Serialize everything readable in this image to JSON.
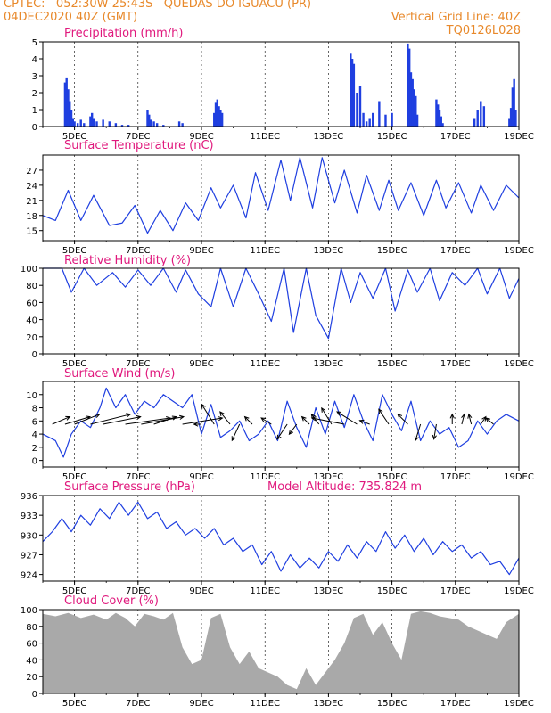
{
  "header": {
    "line1": "CPTEC:   052:30W-25:43S   QUEDAS DO IGUACU (PR)",
    "line2": "04DEC2020 40Z (GMT)",
    "grid_line": "Vertical Grid Line: 40Z",
    "code": "TQ0126L028"
  },
  "colors": {
    "header": "#e8892b",
    "title": "#e0197d",
    "line": "#1f3fe0",
    "bar": "#1f3fe0",
    "cloud": "#a9a9a9"
  },
  "x_ticks": [
    "5DEC",
    "7DEC",
    "9DEC",
    "11DEC",
    "13DEC",
    "15DEC",
    "17DEC",
    "19DEC"
  ],
  "chart_data": [
    {
      "type": "bar",
      "title": "Precipitation (mm/h)",
      "xlim": [
        4.0,
        19.0
      ],
      "ylim": [
        0,
        5
      ],
      "yticks": [
        0,
        1,
        2,
        3,
        4,
        5
      ],
      "x": [
        4.7,
        4.75,
        4.8,
        4.85,
        4.9,
        4.95,
        5.0,
        5.1,
        5.2,
        5.3,
        5.5,
        5.55,
        5.6,
        5.7,
        5.9,
        6.1,
        6.3,
        6.5,
        6.7,
        7.3,
        7.35,
        7.4,
        7.5,
        7.6,
        7.8,
        8.3,
        8.4,
        9.4,
        9.45,
        9.5,
        9.55,
        9.6,
        9.65,
        13.7,
        13.75,
        13.8,
        13.9,
        14.0,
        14.1,
        14.2,
        14.3,
        14.4,
        14.6,
        14.8,
        15.0,
        15.5,
        15.55,
        15.6,
        15.65,
        15.7,
        15.75,
        15.8,
        16.4,
        16.45,
        16.5,
        16.55,
        16.6,
        17.6,
        17.7,
        17.8,
        17.9,
        18.7,
        18.75,
        18.8,
        18.85,
        18.9
      ],
      "values": [
        2.6,
        2.9,
        2.2,
        1.5,
        1.0,
        0.5,
        0.3,
        0.2,
        0.4,
        0.2,
        0.6,
        0.8,
        0.5,
        0.3,
        0.4,
        0.3,
        0.2,
        0.1,
        0.1,
        1.0,
        0.7,
        0.4,
        0.3,
        0.2,
        0.1,
        0.3,
        0.2,
        0.8,
        1.4,
        1.6,
        1.2,
        1.0,
        0.8,
        4.3,
        4.0,
        3.7,
        2.0,
        2.4,
        0.8,
        0.3,
        0.5,
        0.8,
        1.5,
        0.7,
        0.8,
        4.9,
        4.6,
        3.2,
        2.8,
        2.2,
        1.8,
        0.7,
        1.6,
        1.3,
        1.0,
        0.6,
        0.2,
        0.5,
        1.0,
        1.5,
        1.2,
        0.5,
        1.1,
        2.3,
        2.8,
        1.0
      ]
    },
    {
      "type": "line",
      "title": "Surface Temperature (nC)",
      "xlim": [
        4.0,
        19.0
      ],
      "ylim": [
        13,
        30
      ],
      "yticks": [
        15,
        18,
        21,
        24,
        27
      ],
      "x": [
        4.0,
        4.4,
        4.8,
        5.2,
        5.6,
        6.1,
        6.5,
        6.9,
        7.3,
        7.7,
        8.1,
        8.5,
        8.9,
        9.3,
        9.6,
        10.0,
        10.4,
        10.7,
        11.1,
        11.5,
        11.8,
        12.1,
        12.5,
        12.8,
        13.2,
        13.5,
        13.9,
        14.2,
        14.6,
        14.9,
        15.2,
        15.6,
        16.0,
        16.4,
        16.7,
        17.1,
        17.5,
        17.8,
        18.2,
        18.6,
        19.0
      ],
      "values": [
        18,
        17,
        23,
        17,
        22,
        16,
        16.5,
        20,
        14.5,
        19,
        15,
        20.5,
        17,
        23.5,
        19.5,
        24,
        17.5,
        26.5,
        19,
        29,
        21,
        29.5,
        19.5,
        29.5,
        20.5,
        27,
        18.5,
        26,
        19,
        25,
        19,
        24.5,
        18,
        25,
        19.5,
        24.5,
        18.5,
        24,
        19,
        24,
        21.5
      ]
    },
    {
      "type": "line",
      "title": "Relative Humidity (%)",
      "xlim": [
        4.0,
        19.0
      ],
      "ylim": [
        0,
        100
      ],
      "yticks": [
        0,
        20,
        40,
        60,
        80,
        100
      ],
      "x": [
        4.0,
        4.6,
        4.9,
        5.3,
        5.7,
        6.2,
        6.6,
        7.0,
        7.4,
        7.8,
        8.2,
        8.5,
        8.9,
        9.3,
        9.6,
        10.0,
        10.4,
        10.8,
        11.2,
        11.6,
        11.9,
        12.3,
        12.6,
        13.0,
        13.4,
        13.7,
        14.0,
        14.4,
        14.8,
        15.1,
        15.5,
        15.8,
        16.2,
        16.5,
        16.9,
        17.3,
        17.7,
        18.0,
        18.4,
        18.7,
        19.0
      ],
      "values": [
        100,
        100,
        72,
        100,
        80,
        95,
        78,
        98,
        80,
        100,
        72,
        98,
        70,
        55,
        100,
        55,
        100,
        70,
        38,
        100,
        25,
        100,
        45,
        18,
        100,
        60,
        95,
        65,
        100,
        50,
        98,
        72,
        100,
        62,
        95,
        80,
        100,
        70,
        100,
        65,
        88
      ]
    },
    {
      "type": "line",
      "title": "Surface Wind (m/s)",
      "xlim": [
        4.0,
        19.0
      ],
      "ylim": [
        -1,
        12
      ],
      "yticks": [
        0,
        2,
        4,
        6,
        8,
        10
      ],
      "x": [
        4.0,
        4.4,
        4.65,
        4.9,
        5.2,
        5.5,
        5.8,
        6.0,
        6.3,
        6.6,
        6.9,
        7.2,
        7.5,
        7.8,
        8.1,
        8.4,
        8.7,
        9.0,
        9.3,
        9.6,
        9.9,
        10.2,
        10.5,
        10.8,
        11.1,
        11.4,
        11.7,
        12.0,
        12.3,
        12.6,
        12.9,
        13.2,
        13.5,
        13.8,
        14.1,
        14.4,
        14.7,
        15.0,
        15.3,
        15.6,
        15.9,
        16.2,
        16.5,
        16.8,
        17.1,
        17.4,
        17.7,
        18.0,
        18.3,
        18.6,
        19.0
      ],
      "values": [
        4,
        3,
        0.5,
        4,
        6,
        5,
        8,
        11,
        8,
        10,
        7,
        9,
        8,
        10,
        9,
        8,
        10,
        4,
        8.5,
        3.5,
        4.5,
        6,
        3,
        4,
        6,
        3,
        9,
        5,
        2,
        8,
        4,
        9,
        5,
        10,
        6,
        3,
        10,
        7,
        4.5,
        9,
        3,
        6,
        4,
        5,
        2,
        3,
        6,
        4,
        6,
        7,
        6
      ]
    },
    {
      "type": "line",
      "title": "Surface Pressure (hPa)",
      "subtitle": "Model Altitude: 735.824 m",
      "xlim": [
        4.0,
        19.0
      ],
      "ylim": [
        923,
        936
      ],
      "yticks": [
        924,
        927,
        930,
        933,
        936
      ],
      "x": [
        4.0,
        4.3,
        4.6,
        4.9,
        5.2,
        5.5,
        5.8,
        6.1,
        6.4,
        6.7,
        7.0,
        7.3,
        7.6,
        7.9,
        8.2,
        8.5,
        8.8,
        9.1,
        9.4,
        9.7,
        10.0,
        10.3,
        10.6,
        10.9,
        11.2,
        11.5,
        11.8,
        12.1,
        12.4,
        12.7,
        13.0,
        13.3,
        13.6,
        13.9,
        14.2,
        14.5,
        14.8,
        15.1,
        15.4,
        15.7,
        16.0,
        16.3,
        16.6,
        16.9,
        17.2,
        17.5,
        17.8,
        18.1,
        18.4,
        18.7,
        19.0
      ],
      "values": [
        929,
        930.5,
        932.5,
        930.5,
        933,
        931.5,
        934,
        932.5,
        935,
        933,
        935,
        932.5,
        933.5,
        931,
        932,
        930,
        931,
        929.5,
        931,
        928.5,
        929.5,
        927.5,
        928.5,
        925.5,
        927.5,
        924.5,
        927,
        925,
        926.5,
        925,
        927.5,
        926,
        928.5,
        926.5,
        929,
        927.5,
        930.5,
        928,
        930,
        927.5,
        929.5,
        927,
        929,
        927.5,
        928.5,
        926.5,
        927.5,
        925.5,
        926,
        924,
        926.5
      ]
    },
    {
      "type": "area",
      "title": "Cloud Cover (%)",
      "xlim": [
        4.0,
        19.0
      ],
      "ylim": [
        0,
        100
      ],
      "yticks": [
        0,
        20,
        40,
        60,
        80,
        100
      ],
      "x": [
        4.0,
        4.4,
        4.8,
        5.2,
        5.6,
        6.0,
        6.3,
        6.6,
        6.9,
        7.2,
        7.5,
        7.8,
        8.1,
        8.4,
        8.7,
        9.0,
        9.3,
        9.6,
        9.9,
        10.2,
        10.5,
        10.8,
        11.1,
        11.4,
        11.7,
        12.0,
        12.3,
        12.6,
        12.9,
        13.2,
        13.5,
        13.8,
        14.1,
        14.4,
        14.7,
        15.0,
        15.3,
        15.6,
        15.9,
        16.2,
        16.5,
        16.8,
        17.1,
        17.4,
        17.7,
        18.0,
        18.3,
        18.6,
        19.0
      ],
      "values": [
        95,
        92,
        96,
        90,
        94,
        88,
        96,
        90,
        80,
        95,
        92,
        88,
        96,
        55,
        35,
        40,
        90,
        95,
        55,
        35,
        50,
        30,
        25,
        20,
        10,
        5,
        30,
        10,
        25,
        40,
        60,
        90,
        95,
        70,
        85,
        60,
        40,
        95,
        98,
        96,
        92,
        90,
        88,
        80,
        75,
        70,
        65,
        85,
        95
      ]
    }
  ],
  "wind_vectors": {
    "x": [
      4.3,
      4.7,
      5.0,
      5.5,
      5.9,
      6.6,
      7.1,
      7.5,
      8.4,
      9.0,
      9.4,
      9.9,
      10.2,
      10.6,
      11.2,
      11.7,
      12.0,
      12.4,
      12.7,
      13.1,
      13.5,
      13.9,
      14.3,
      14.9,
      15.5,
      15.9,
      16.4,
      16.9,
      17.2,
      17.5,
      17.8,
      18.2
    ],
    "dx": [
      0.7,
      1.0,
      1.0,
      1.6,
      1.5,
      1.8,
      1.7,
      0.9,
      1.6,
      -0.3,
      -0.5,
      -0.4,
      -0.3,
      -0.3,
      -0.4,
      -0.4,
      -0.3,
      -0.3,
      -0.3,
      -0.4,
      -1.3,
      -0.8,
      -0.4,
      -0.4,
      -0.4,
      -0.2,
      -0.1,
      0.0,
      0.1,
      -0.1,
      0.2,
      -0.3
    ],
    "dy": [
      0.6,
      0.6,
      0.8,
      0.8,
      0.6,
      0.5,
      0.6,
      0.6,
      0.5,
      0.0,
      1.6,
      1.0,
      -1.3,
      0.6,
      0.5,
      -1.2,
      -0.8,
      0.6,
      0.8,
      1.3,
      0.5,
      1.0,
      0.3,
      1.2,
      0.8,
      -1.3,
      -1.2,
      0.8,
      0.8,
      0.8,
      0.6,
      0.5
    ]
  }
}
